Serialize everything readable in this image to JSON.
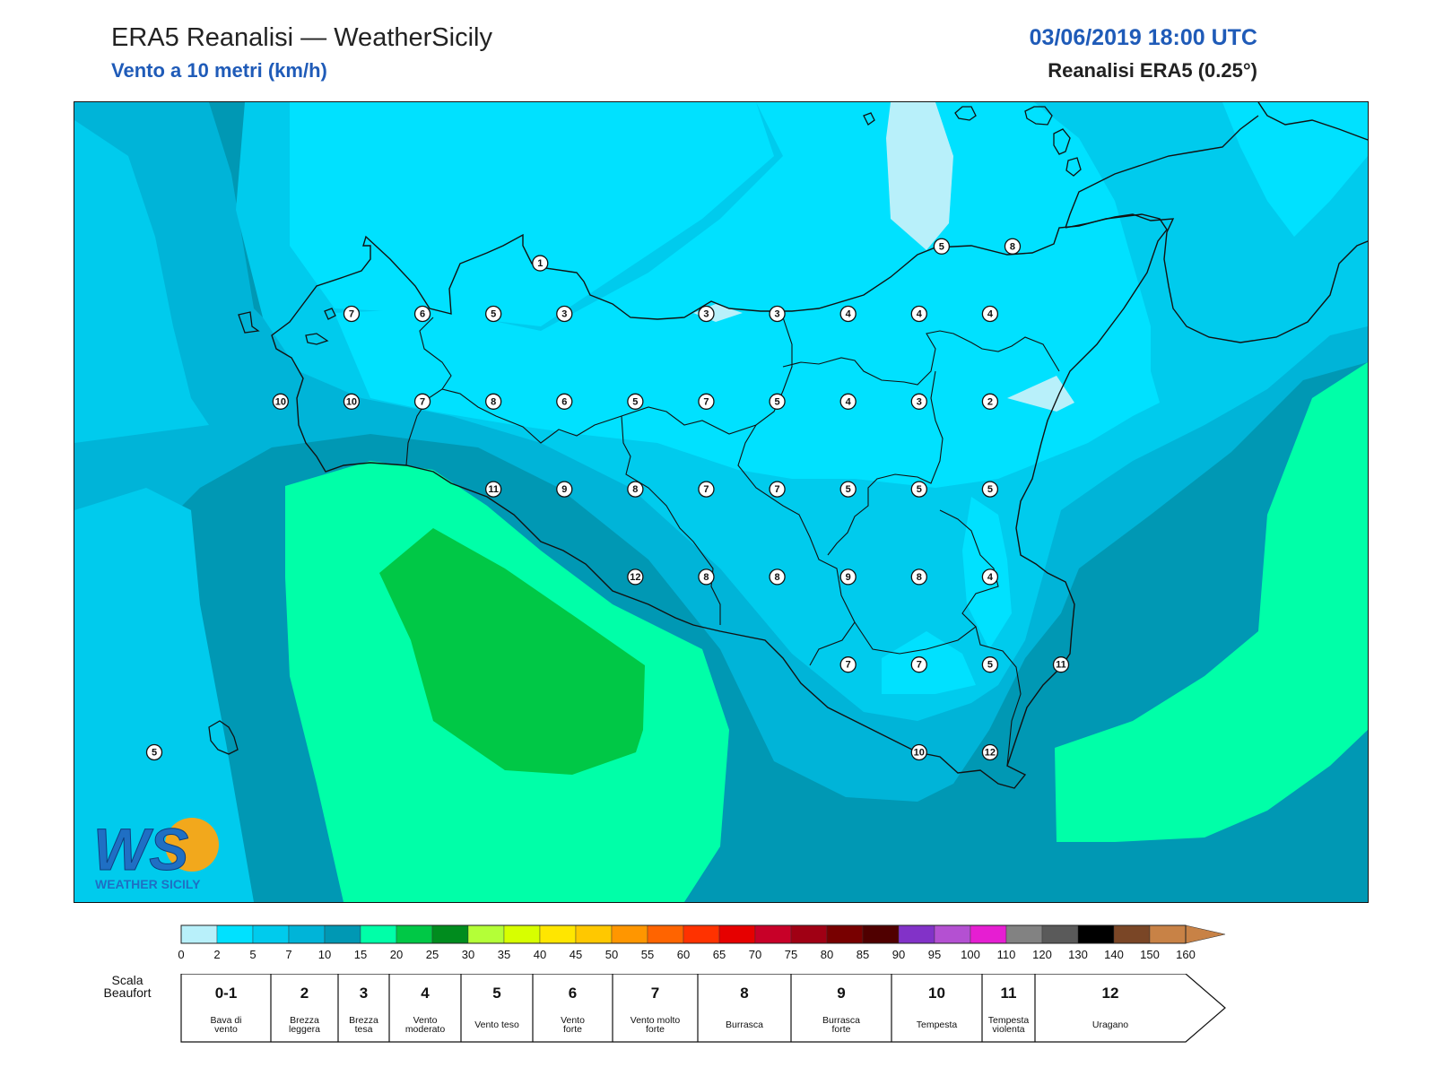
{
  "header": {
    "title": "ERA5 Reanalisi — WeatherSicily",
    "subtitle": "Vento a 10 metri (km/h)",
    "datetime": "03/06/2019 18:00 UTC",
    "model": "Reanalisi ERA5 (0.25°)"
  },
  "logo": {
    "main": "WS",
    "caption": "WEATHER SICILY"
  },
  "stations": [
    {
      "lon": 13.23,
      "lat": 38.27,
      "v": "1"
    },
    {
      "lon": 15.55,
      "lat": 38.32,
      "v": "5"
    },
    {
      "lon": 15.96,
      "lat": 38.32,
      "v": "8"
    },
    {
      "lon": 12.14,
      "lat": 38.12,
      "v": "7"
    },
    {
      "lon": 12.55,
      "lat": 38.12,
      "v": "6"
    },
    {
      "lon": 12.96,
      "lat": 38.12,
      "v": "5"
    },
    {
      "lon": 13.37,
      "lat": 38.12,
      "v": "3"
    },
    {
      "lon": 14.19,
      "lat": 38.12,
      "v": "3"
    },
    {
      "lon": 14.6,
      "lat": 38.12,
      "v": "3"
    },
    {
      "lon": 15.01,
      "lat": 38.12,
      "v": "4"
    },
    {
      "lon": 15.42,
      "lat": 38.12,
      "v": "4"
    },
    {
      "lon": 15.83,
      "lat": 38.12,
      "v": "4"
    },
    {
      "lon": 11.73,
      "lat": 37.86,
      "v": "10"
    },
    {
      "lon": 12.14,
      "lat": 37.86,
      "v": "10"
    },
    {
      "lon": 12.55,
      "lat": 37.86,
      "v": "7"
    },
    {
      "lon": 12.96,
      "lat": 37.86,
      "v": "8"
    },
    {
      "lon": 13.37,
      "lat": 37.86,
      "v": "6"
    },
    {
      "lon": 13.78,
      "lat": 37.86,
      "v": "5"
    },
    {
      "lon": 14.19,
      "lat": 37.86,
      "v": "7"
    },
    {
      "lon": 14.6,
      "lat": 37.86,
      "v": "5"
    },
    {
      "lon": 15.01,
      "lat": 37.86,
      "v": "4"
    },
    {
      "lon": 15.42,
      "lat": 37.86,
      "v": "3"
    },
    {
      "lon": 15.83,
      "lat": 37.86,
      "v": "2"
    },
    {
      "lon": 12.96,
      "lat": 37.6,
      "v": "11"
    },
    {
      "lon": 13.37,
      "lat": 37.6,
      "v": "9"
    },
    {
      "lon": 13.78,
      "lat": 37.6,
      "v": "8"
    },
    {
      "lon": 14.19,
      "lat": 37.6,
      "v": "7"
    },
    {
      "lon": 14.6,
      "lat": 37.6,
      "v": "7"
    },
    {
      "lon": 15.01,
      "lat": 37.6,
      "v": "5"
    },
    {
      "lon": 15.42,
      "lat": 37.6,
      "v": "5"
    },
    {
      "lon": 15.83,
      "lat": 37.6,
      "v": "5"
    },
    {
      "lon": 13.78,
      "lat": 37.34,
      "v": "12"
    },
    {
      "lon": 14.19,
      "lat": 37.34,
      "v": "8"
    },
    {
      "lon": 14.6,
      "lat": 37.34,
      "v": "8"
    },
    {
      "lon": 15.01,
      "lat": 37.34,
      "v": "9"
    },
    {
      "lon": 15.42,
      "lat": 37.34,
      "v": "8"
    },
    {
      "lon": 15.83,
      "lat": 37.34,
      "v": "4"
    },
    {
      "lon": 15.01,
      "lat": 37.08,
      "v": "7"
    },
    {
      "lon": 15.42,
      "lat": 37.08,
      "v": "7"
    },
    {
      "lon": 15.83,
      "lat": 37.08,
      "v": "5"
    },
    {
      "lon": 16.24,
      "lat": 37.08,
      "v": "11"
    },
    {
      "lon": 15.42,
      "lat": 36.82,
      "v": "10"
    },
    {
      "lon": 15.83,
      "lat": 36.82,
      "v": "12"
    },
    {
      "lon": 11.0,
      "lat": 36.82,
      "v": "5"
    }
  ],
  "colorbar": {
    "ticks": [
      "0",
      "2",
      "5",
      "7",
      "10",
      "15",
      "20",
      "25",
      "30",
      "35",
      "40",
      "45",
      "50",
      "55",
      "60",
      "65",
      "70",
      "75",
      "80",
      "85",
      "90",
      "95",
      "100",
      "110",
      "120",
      "130",
      "140",
      "150",
      "160"
    ],
    "colors": [
      "#b8f0fa",
      "#00e1ff",
      "#00cbed",
      "#00b4d8",
      "#0098b4",
      "#00ffa8",
      "#00c846",
      "#008c1e",
      "#b4ff37",
      "#d7ff00",
      "#ffe600",
      "#ffc800",
      "#ff9600",
      "#ff6400",
      "#ff3200",
      "#e60000",
      "#c80028",
      "#a00014",
      "#780000",
      "#500000",
      "#8232c8",
      "#b450d2",
      "#e61ed2",
      "#828282",
      "#5a5a5a",
      "#000000",
      "#7a4626",
      "#c88246"
    ]
  },
  "beaufort": {
    "label": "Scala\nBeaufort",
    "classes": [
      {
        "num": "0-1",
        "desc": [
          "Bava di",
          "vento"
        ]
      },
      {
        "num": "2",
        "desc": [
          "Brezza",
          "leggera"
        ]
      },
      {
        "num": "3",
        "desc": [
          "Brezza",
          "tesa"
        ]
      },
      {
        "num": "4",
        "desc": [
          "Vento",
          "moderato"
        ]
      },
      {
        "num": "5",
        "desc": [
          "Vento teso"
        ]
      },
      {
        "num": "6",
        "desc": [
          "Vento",
          "forte"
        ]
      },
      {
        "num": "7",
        "desc": [
          "Vento molto",
          "forte"
        ]
      },
      {
        "num": "8",
        "desc": [
          "Burrasca"
        ]
      },
      {
        "num": "9",
        "desc": [
          "Burrasca",
          "forte"
        ]
      },
      {
        "num": "10",
        "desc": [
          "Tempesta"
        ]
      },
      {
        "num": "11",
        "desc": [
          "Tempesta",
          "violenta"
        ]
      },
      {
        "num": "12",
        "desc": [
          "Uragano"
        ]
      }
    ]
  }
}
